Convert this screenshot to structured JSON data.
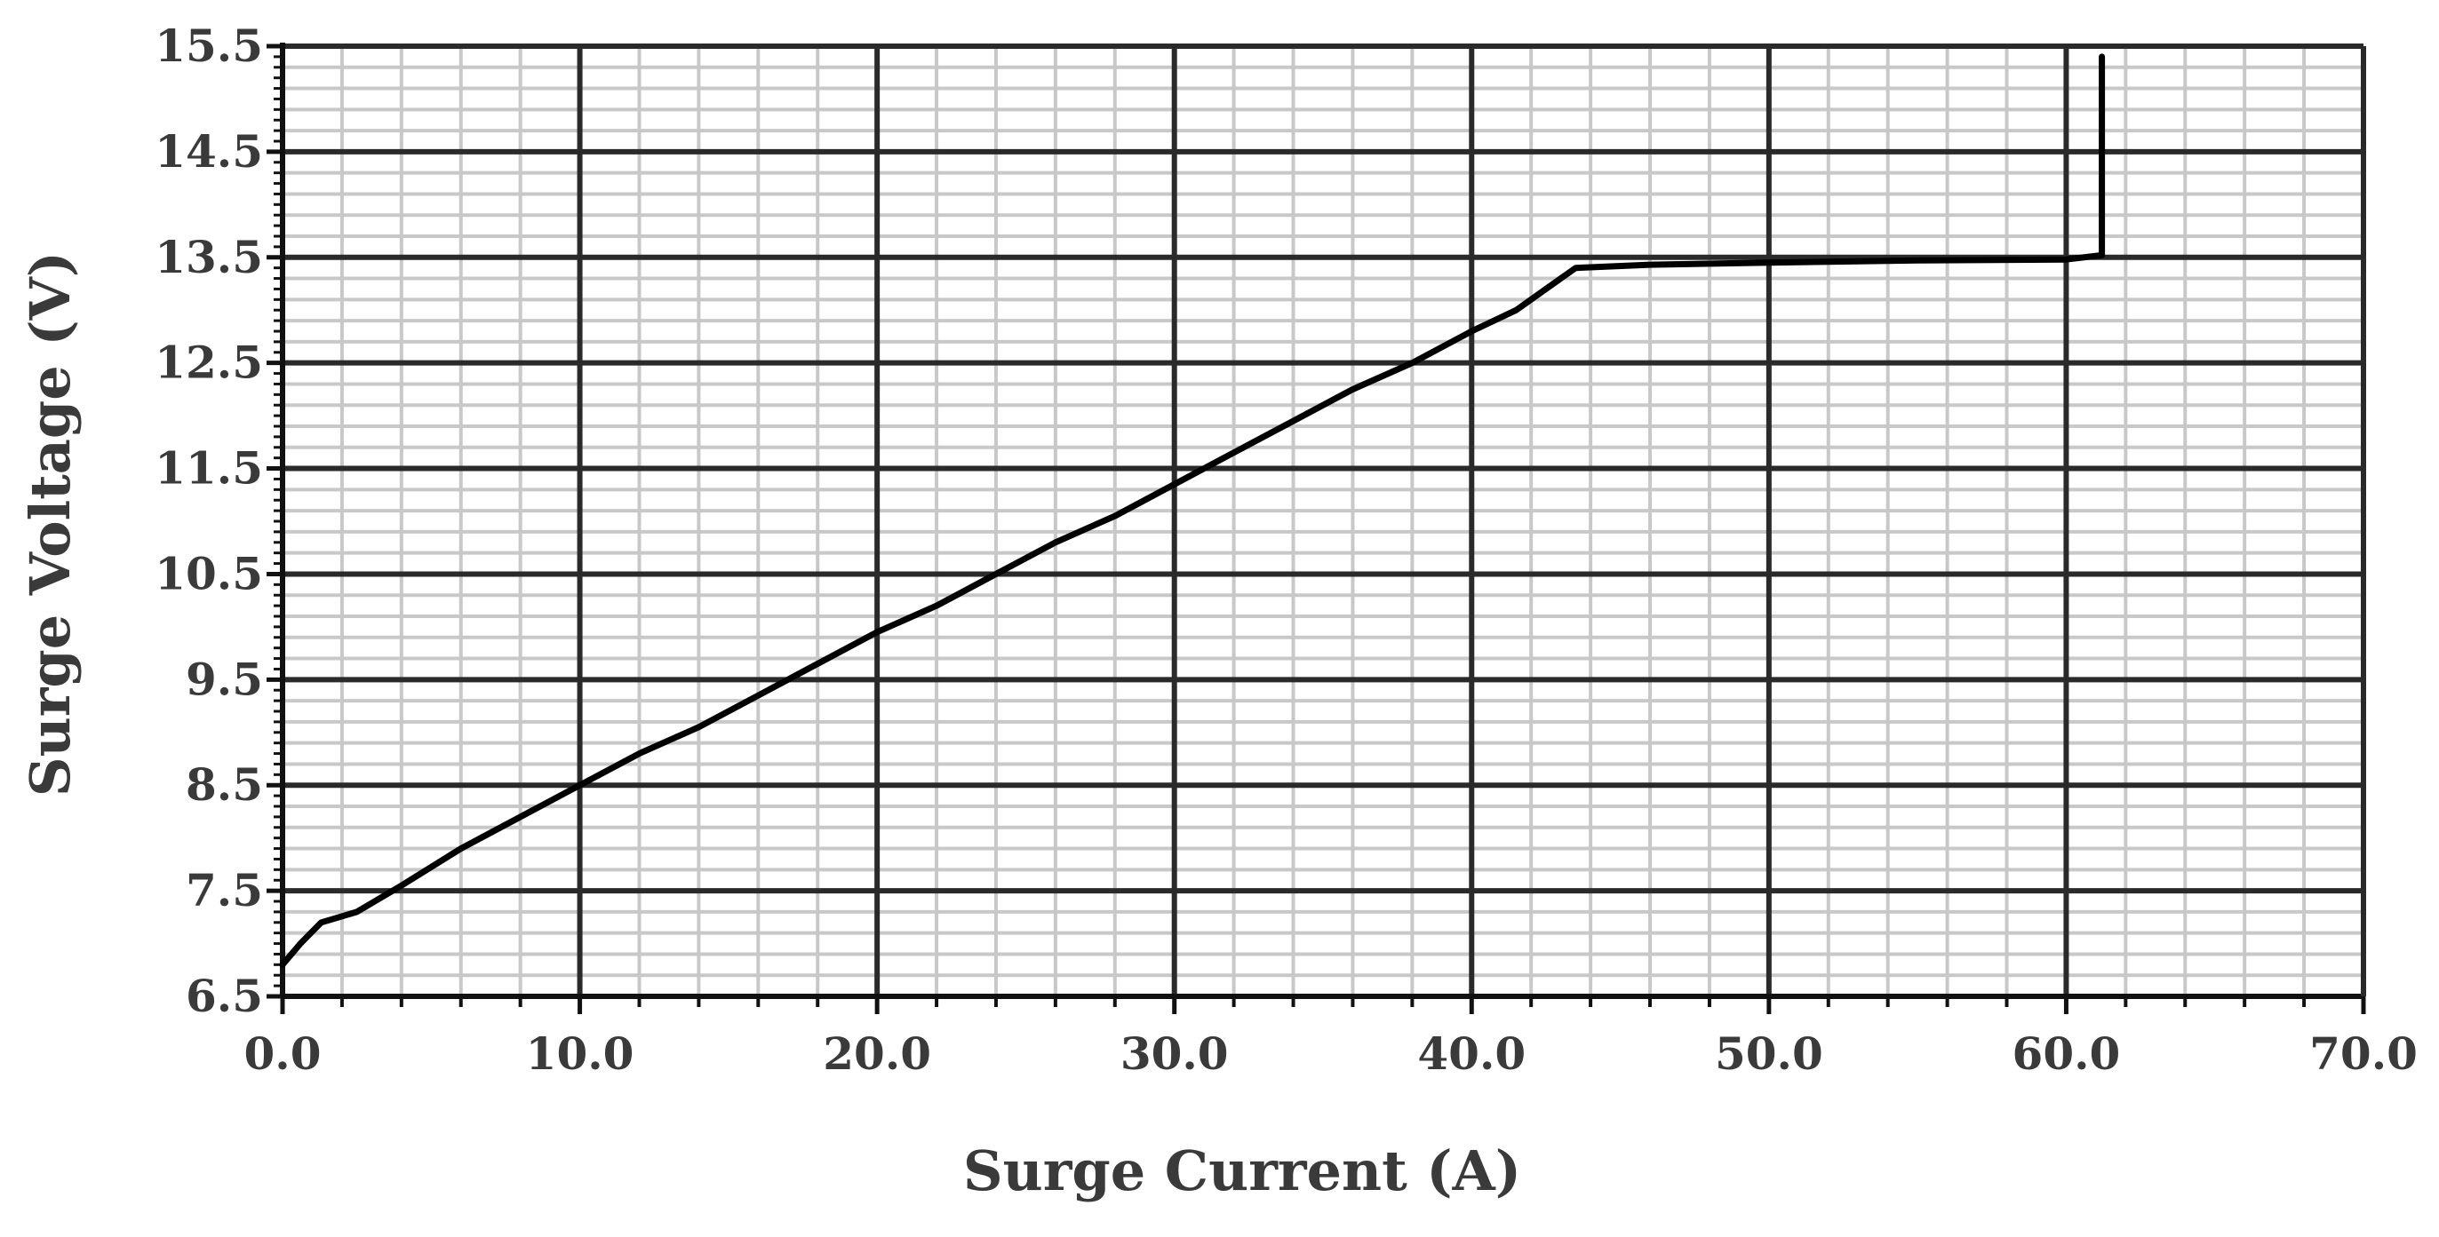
{
  "chart_data": {
    "type": "line",
    "title": "",
    "xlabel": "Surge Current (A)",
    "ylabel": "Surge Voltage (V)",
    "xlim": [
      0,
      70
    ],
    "ylim": [
      6.5,
      15.5
    ],
    "x_ticks": [
      "0.0",
      "10.0",
      "20.0",
      "30.0",
      "40.0",
      "50.0",
      "60.0",
      "70.0"
    ],
    "y_ticks": [
      "6.5",
      "7.5",
      "8.5",
      "9.5",
      "10.5",
      "11.5",
      "12.5",
      "13.5",
      "14.5",
      "15.5"
    ],
    "grid": true,
    "legend": "none",
    "series": [
      {
        "color": "#000000",
        "points": [
          [
            0.0,
            6.8
          ],
          [
            0.6,
            7.0
          ],
          [
            1.3,
            7.2
          ],
          [
            2.5,
            7.3
          ],
          [
            4.0,
            7.55
          ],
          [
            6.0,
            7.9
          ],
          [
            8.0,
            8.2
          ],
          [
            10.0,
            8.5
          ],
          [
            12.0,
            8.8
          ],
          [
            14.0,
            9.05
          ],
          [
            16.0,
            9.35
          ],
          [
            18.0,
            9.65
          ],
          [
            20.0,
            9.95
          ],
          [
            22.0,
            10.2
          ],
          [
            24.0,
            10.5
          ],
          [
            26.0,
            10.8
          ],
          [
            28.0,
            11.05
          ],
          [
            30.0,
            11.35
          ],
          [
            32.0,
            11.65
          ],
          [
            34.0,
            11.95
          ],
          [
            36.0,
            12.25
          ],
          [
            38.0,
            12.5
          ],
          [
            40.0,
            12.8
          ],
          [
            41.5,
            13.0
          ],
          [
            42.5,
            13.2
          ],
          [
            43.5,
            13.4
          ],
          [
            46.0,
            13.43
          ],
          [
            50.0,
            13.45
          ],
          [
            55.0,
            13.47
          ],
          [
            60.0,
            13.48
          ],
          [
            61.2,
            13.52
          ],
          [
            61.2,
            15.4
          ]
        ]
      }
    ]
  }
}
